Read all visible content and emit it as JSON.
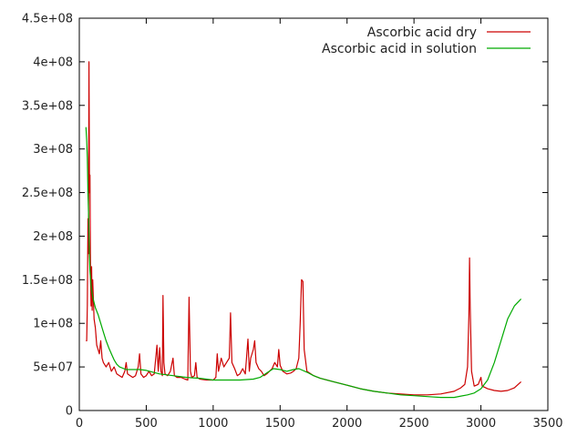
{
  "chart_data": {
    "type": "line",
    "title": "",
    "xlabel": "",
    "ylabel": "",
    "xlim": [
      0,
      3500
    ],
    "ylim": [
      0,
      450000000
    ],
    "x_ticks": [
      0,
      500,
      1000,
      1500,
      2000,
      2500,
      3000,
      3500
    ],
    "x_tick_labels": [
      "0",
      "500",
      "1000",
      "1500",
      "2000",
      "2500",
      "3000",
      "3500"
    ],
    "y_ticks": [
      0,
      50000000,
      100000000,
      150000000,
      200000000,
      250000000,
      300000000,
      350000000,
      400000000,
      450000000
    ],
    "y_tick_labels": [
      "0",
      "5e+07",
      "1e+08",
      "1.5e+08",
      "2e+08",
      "2.5e+08",
      "3e+08",
      "3.5e+08",
      "4e+08",
      "4.5e+08"
    ],
    "grid": false,
    "legend_position": "top-right",
    "series": [
      {
        "name": "Ascorbic acid dry",
        "color": "#cc0000",
        "points": [
          [
            50,
            80000000
          ],
          [
            55,
            80000000
          ],
          [
            60,
            120000000
          ],
          [
            65,
            220000000
          ],
          [
            68,
            180000000
          ],
          [
            72,
            400000000
          ],
          [
            76,
            250000000
          ],
          [
            80,
            270000000
          ],
          [
            84,
            150000000
          ],
          [
            88,
            120000000
          ],
          [
            92,
            165000000
          ],
          [
            96,
            115000000
          ],
          [
            100,
            150000000
          ],
          [
            110,
            105000000
          ],
          [
            120,
            95000000
          ],
          [
            130,
            75000000
          ],
          [
            140,
            70000000
          ],
          [
            150,
            65000000
          ],
          [
            160,
            80000000
          ],
          [
            170,
            60000000
          ],
          [
            180,
            55000000
          ],
          [
            200,
            50000000
          ],
          [
            220,
            55000000
          ],
          [
            240,
            45000000
          ],
          [
            260,
            50000000
          ],
          [
            280,
            42000000
          ],
          [
            300,
            40000000
          ],
          [
            320,
            38000000
          ],
          [
            340,
            45000000
          ],
          [
            350,
            55000000
          ],
          [
            360,
            42000000
          ],
          [
            380,
            40000000
          ],
          [
            400,
            38000000
          ],
          [
            420,
            40000000
          ],
          [
            440,
            50000000
          ],
          [
            450,
            65000000
          ],
          [
            460,
            42000000
          ],
          [
            480,
            38000000
          ],
          [
            500,
            40000000
          ],
          [
            520,
            45000000
          ],
          [
            540,
            40000000
          ],
          [
            560,
            42000000
          ],
          [
            580,
            75000000
          ],
          [
            590,
            45000000
          ],
          [
            600,
            72000000
          ],
          [
            610,
            45000000
          ],
          [
            620,
            40000000
          ],
          [
            625,
            132000000
          ],
          [
            632,
            55000000
          ],
          [
            640,
            42000000
          ],
          [
            660,
            40000000
          ],
          [
            680,
            45000000
          ],
          [
            700,
            60000000
          ],
          [
            710,
            40000000
          ],
          [
            730,
            38000000
          ],
          [
            760,
            38000000
          ],
          [
            790,
            36000000
          ],
          [
            810,
            35000000
          ],
          [
            820,
            130000000
          ],
          [
            830,
            45000000
          ],
          [
            840,
            38000000
          ],
          [
            860,
            40000000
          ],
          [
            870,
            55000000
          ],
          [
            880,
            38000000
          ],
          [
            900,
            36000000
          ],
          [
            950,
            35000000
          ],
          [
            1000,
            35000000
          ],
          [
            1020,
            38000000
          ],
          [
            1030,
            65000000
          ],
          [
            1040,
            45000000
          ],
          [
            1060,
            60000000
          ],
          [
            1080,
            50000000
          ],
          [
            1100,
            55000000
          ],
          [
            1120,
            60000000
          ],
          [
            1130,
            112000000
          ],
          [
            1140,
            55000000
          ],
          [
            1160,
            48000000
          ],
          [
            1180,
            40000000
          ],
          [
            1200,
            42000000
          ],
          [
            1220,
            48000000
          ],
          [
            1240,
            42000000
          ],
          [
            1260,
            82000000
          ],
          [
            1270,
            45000000
          ],
          [
            1280,
            60000000
          ],
          [
            1300,
            70000000
          ],
          [
            1310,
            80000000
          ],
          [
            1320,
            55000000
          ],
          [
            1340,
            48000000
          ],
          [
            1360,
            45000000
          ],
          [
            1380,
            40000000
          ],
          [
            1400,
            42000000
          ],
          [
            1420,
            45000000
          ],
          [
            1440,
            48000000
          ],
          [
            1460,
            55000000
          ],
          [
            1480,
            50000000
          ],
          [
            1490,
            70000000
          ],
          [
            1500,
            52000000
          ],
          [
            1520,
            45000000
          ],
          [
            1550,
            42000000
          ],
          [
            1580,
            43000000
          ],
          [
            1600,
            45000000
          ],
          [
            1620,
            48000000
          ],
          [
            1640,
            60000000
          ],
          [
            1650,
            100000000
          ],
          [
            1660,
            150000000
          ],
          [
            1670,
            148000000
          ],
          [
            1680,
            70000000
          ],
          [
            1700,
            45000000
          ],
          [
            1750,
            40000000
          ],
          [
            1800,
            37000000
          ],
          [
            1850,
            35000000
          ],
          [
            1900,
            33000000
          ],
          [
            1950,
            31000000
          ],
          [
            2000,
            29000000
          ],
          [
            2100,
            25000000
          ],
          [
            2200,
            22000000
          ],
          [
            2300,
            20000000
          ],
          [
            2400,
            19000000
          ],
          [
            2500,
            18000000
          ],
          [
            2600,
            18000000
          ],
          [
            2700,
            19000000
          ],
          [
            2800,
            22000000
          ],
          [
            2850,
            26000000
          ],
          [
            2880,
            30000000
          ],
          [
            2900,
            50000000
          ],
          [
            2910,
            110000000
          ],
          [
            2915,
            175000000
          ],
          [
            2920,
            120000000
          ],
          [
            2930,
            45000000
          ],
          [
            2950,
            28000000
          ],
          [
            2980,
            30000000
          ],
          [
            3000,
            38000000
          ],
          [
            3010,
            28000000
          ],
          [
            3050,
            25000000
          ],
          [
            3100,
            23000000
          ],
          [
            3150,
            22000000
          ],
          [
            3200,
            23000000
          ],
          [
            3250,
            26000000
          ],
          [
            3300,
            33000000
          ]
        ]
      },
      {
        "name": "Ascorbic acid in solution",
        "color": "#00aa00",
        "points": [
          [
            50,
            325000000
          ],
          [
            55,
            310000000
          ],
          [
            60,
            290000000
          ],
          [
            65,
            250000000
          ],
          [
            70,
            220000000
          ],
          [
            75,
            180000000
          ],
          [
            80,
            160000000
          ],
          [
            90,
            140000000
          ],
          [
            100,
            130000000
          ],
          [
            120,
            118000000
          ],
          [
            140,
            110000000
          ],
          [
            160,
            100000000
          ],
          [
            180,
            90000000
          ],
          [
            200,
            80000000
          ],
          [
            220,
            72000000
          ],
          [
            240,
            65000000
          ],
          [
            260,
            58000000
          ],
          [
            280,
            53000000
          ],
          [
            300,
            50000000
          ],
          [
            350,
            47000000
          ],
          [
            400,
            47000000
          ],
          [
            450,
            47000000
          ],
          [
            500,
            46000000
          ],
          [
            550,
            44000000
          ],
          [
            600,
            42000000
          ],
          [
            700,
            40000000
          ],
          [
            800,
            38000000
          ],
          [
            900,
            37000000
          ],
          [
            1000,
            35000000
          ],
          [
            1100,
            35000000
          ],
          [
            1200,
            35000000
          ],
          [
            1300,
            36000000
          ],
          [
            1350,
            38000000
          ],
          [
            1400,
            43000000
          ],
          [
            1450,
            48000000
          ],
          [
            1500,
            47000000
          ],
          [
            1550,
            45000000
          ],
          [
            1600,
            47000000
          ],
          [
            1640,
            48000000
          ],
          [
            1700,
            44000000
          ],
          [
            1750,
            40000000
          ],
          [
            1800,
            37000000
          ],
          [
            1900,
            33000000
          ],
          [
            2000,
            29000000
          ],
          [
            2100,
            25000000
          ],
          [
            2200,
            22000000
          ],
          [
            2300,
            20000000
          ],
          [
            2400,
            18000000
          ],
          [
            2500,
            17000000
          ],
          [
            2600,
            16000000
          ],
          [
            2700,
            15000000
          ],
          [
            2800,
            15000000
          ],
          [
            2900,
            18000000
          ],
          [
            2950,
            20000000
          ],
          [
            3000,
            25000000
          ],
          [
            3050,
            35000000
          ],
          [
            3100,
            55000000
          ],
          [
            3150,
            80000000
          ],
          [
            3200,
            105000000
          ],
          [
            3250,
            120000000
          ],
          [
            3300,
            128000000
          ]
        ]
      }
    ]
  }
}
